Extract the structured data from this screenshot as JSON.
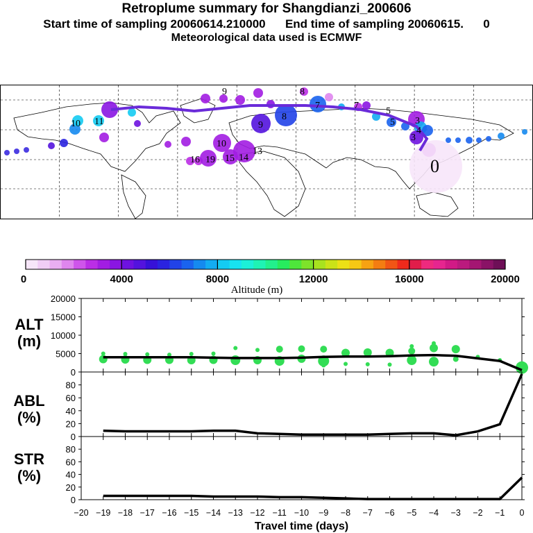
{
  "titles": {
    "line1": "Retroplume summary for Shangdianzi_200606",
    "line2": "Start time of sampling 20060614.210000      End time of sampling 20060615.      0",
    "line3": "Meteorological data used is ECMWF"
  },
  "colors": {
    "trajectory": "#6a2bd9",
    "alt_points": "#33dd55",
    "colorbar": [
      "#f7e6f9",
      "#f1cdf6",
      "#e9aef2",
      "#df86ee",
      "#cf55eb",
      "#bb2ee6",
      "#a21de2",
      "#8a15e2",
      "#6e12e0",
      "#5313de",
      "#3611d8",
      "#2a23e0",
      "#2143e8",
      "#1a63ee",
      "#158aef",
      "#13acf2",
      "#14cbf2",
      "#17e3f0",
      "#1cf0d8",
      "#1ff3b4",
      "#22f08c",
      "#27ec5e",
      "#4ee63b",
      "#7ee32a",
      "#a8e21f",
      "#cbe218",
      "#ece016",
      "#f6c814",
      "#f7a212",
      "#f47d12",
      "#f15515",
      "#ef2a1c",
      "#e11d4a",
      "#ee2a7e",
      "#e6258f",
      "#d11a86",
      "#bb1a7e",
      "#a41672",
      "#8a1266",
      "#6e0f57"
    ]
  },
  "colorbar": {
    "ticks": [
      "0",
      "4000",
      "8000",
      "12000",
      "16000",
      "20000"
    ],
    "label": "Altitude (m)"
  },
  "map_labels": [
    {
      "n": "10",
      "lon": -174
    },
    {
      "n": "11",
      "lon": -179
    },
    {
      "n": "9",
      "lon": -130
    },
    {
      "n": "8",
      "lon": -105
    },
    {
      "n": "7",
      "lon": -84
    },
    {
      "n": "5",
      "lon": -73
    },
    {
      "n": "3",
      "lon": -13
    },
    {
      "n": "4",
      "lon": -15
    },
    {
      "n": "10",
      "lon": 18
    },
    {
      "n": "15",
      "lon": 25
    },
    {
      "n": "14",
      "lon": 30
    },
    {
      "n": "13",
      "lon": 33
    },
    {
      "n": "19",
      "lon": 14
    },
    {
      "n": "16",
      "lon": 5
    },
    {
      "n": "9",
      "lon": 65
    },
    {
      "n": "8",
      "lon": 80
    },
    {
      "n": "7",
      "lon": 107
    },
    {
      "n": "5",
      "lon": 137
    },
    {
      "n": "3",
      "lon": 150
    },
    {
      "n": "0",
      "lon": 117
    }
  ],
  "chart_data": [
    {
      "type": "line",
      "panel": "ALT",
      "ylabel": "ALT\n(m)",
      "ylim": [
        0,
        20000
      ],
      "yticks": [
        0,
        5000,
        10000,
        15000,
        20000
      ],
      "xlabel": "Travel time (days)",
      "xlim": [
        -20,
        0
      ],
      "x": [
        -19,
        -18,
        -17,
        -16,
        -15,
        -14,
        -13,
        -12,
        -11,
        -10,
        -9,
        -8,
        -7,
        -6,
        -5,
        -4,
        -3,
        -2,
        -1,
        0
      ],
      "values": [
        4000,
        4000,
        4000,
        4000,
        4000,
        3900,
        3800,
        3800,
        3800,
        3900,
        4100,
        4200,
        4200,
        4300,
        4500,
        4600,
        4400,
        3700,
        3000,
        500
      ],
      "scatter": [
        {
          "x": -19,
          "y": 3500,
          "s": 6
        },
        {
          "x": -19,
          "y": 5000,
          "s": 3
        },
        {
          "x": -18,
          "y": 3400,
          "s": 6
        },
        {
          "x": -18,
          "y": 4900,
          "s": 3
        },
        {
          "x": -17,
          "y": 3300,
          "s": 6
        },
        {
          "x": -17,
          "y": 4800,
          "s": 3
        },
        {
          "x": -16,
          "y": 3300,
          "s": 6
        },
        {
          "x": -16,
          "y": 4700,
          "s": 3
        },
        {
          "x": -15,
          "y": 3200,
          "s": 6
        },
        {
          "x": -15,
          "y": 4900,
          "s": 3
        },
        {
          "x": -14,
          "y": 3300,
          "s": 6
        },
        {
          "x": -14,
          "y": 5000,
          "s": 3
        },
        {
          "x": -13,
          "y": 3200,
          "s": 7
        },
        {
          "x": -13,
          "y": 6500,
          "s": 3
        },
        {
          "x": -12,
          "y": 3200,
          "s": 6
        },
        {
          "x": -12,
          "y": 6000,
          "s": 3
        },
        {
          "x": -11,
          "y": 3000,
          "s": 7
        },
        {
          "x": -11,
          "y": 6200,
          "s": 5
        },
        {
          "x": -10,
          "y": 3600,
          "s": 6
        },
        {
          "x": -10,
          "y": 6300,
          "s": 5
        },
        {
          "x": -9,
          "y": 3000,
          "s": 8
        },
        {
          "x": -9,
          "y": 6200,
          "s": 5
        },
        {
          "x": -9,
          "y": 1800,
          "s": 3
        },
        {
          "x": -8,
          "y": 5200,
          "s": 6
        },
        {
          "x": -8,
          "y": 2200,
          "s": 3
        },
        {
          "x": -7,
          "y": 5300,
          "s": 6
        },
        {
          "x": -7,
          "y": 2100,
          "s": 3
        },
        {
          "x": -6,
          "y": 5200,
          "s": 6
        },
        {
          "x": -6,
          "y": 2000,
          "s": 3
        },
        {
          "x": -5,
          "y": 3200,
          "s": 7
        },
        {
          "x": -5,
          "y": 5700,
          "s": 5
        },
        {
          "x": -5,
          "y": 7000,
          "s": 3
        },
        {
          "x": -4,
          "y": 2800,
          "s": 7
        },
        {
          "x": -4,
          "y": 6500,
          "s": 6
        },
        {
          "x": -4,
          "y": 7800,
          "s": 3
        },
        {
          "x": -3,
          "y": 6200,
          "s": 6
        },
        {
          "x": -3,
          "y": 3500,
          "s": 4
        },
        {
          "x": -2,
          "y": 4100,
          "s": 3
        },
        {
          "x": -1,
          "y": 3200,
          "s": 3
        },
        {
          "x": 0,
          "y": 1200,
          "s": 9
        }
      ]
    },
    {
      "type": "line",
      "panel": "ABL",
      "ylabel": "ABL\n(%)",
      "ylim": [
        0,
        100
      ],
      "yticks": [
        0,
        20,
        40,
        60,
        80
      ],
      "xlim": [
        -20,
        0
      ],
      "x": [
        -19,
        -18,
        -17,
        -16,
        -15,
        -14,
        -13,
        -12,
        -11,
        -10,
        -9,
        -8,
        -7,
        -6,
        -5,
        -4,
        -3,
        -2,
        -1,
        0
      ],
      "values": [
        9,
        8,
        8,
        8,
        8,
        9,
        9,
        5,
        4,
        3,
        3,
        3,
        3,
        4,
        5,
        5,
        2,
        8,
        19,
        97
      ]
    },
    {
      "type": "line",
      "panel": "STR",
      "ylabel": "STR\n(%)",
      "ylim": [
        0,
        100
      ],
      "yticks": [
        0,
        20,
        40,
        60,
        80
      ],
      "xlim": [
        -20,
        0
      ],
      "xticks": [
        -20,
        -19,
        -18,
        -17,
        -16,
        -15,
        -14,
        -13,
        -12,
        -11,
        -10,
        -9,
        -8,
        -7,
        -6,
        -5,
        -4,
        -3,
        -2,
        -1,
        0
      ],
      "x": [
        -19,
        -18,
        -17,
        -16,
        -15,
        -14,
        -13,
        -12,
        -11,
        -10,
        -9,
        -8,
        -7,
        -6,
        -5,
        -4,
        -3,
        -2,
        -1,
        0
      ],
      "values": [
        6,
        6,
        6,
        6,
        6,
        5,
        5,
        5,
        4,
        4,
        3,
        2,
        1,
        1,
        1,
        1,
        1,
        1,
        1,
        35
      ]
    }
  ]
}
